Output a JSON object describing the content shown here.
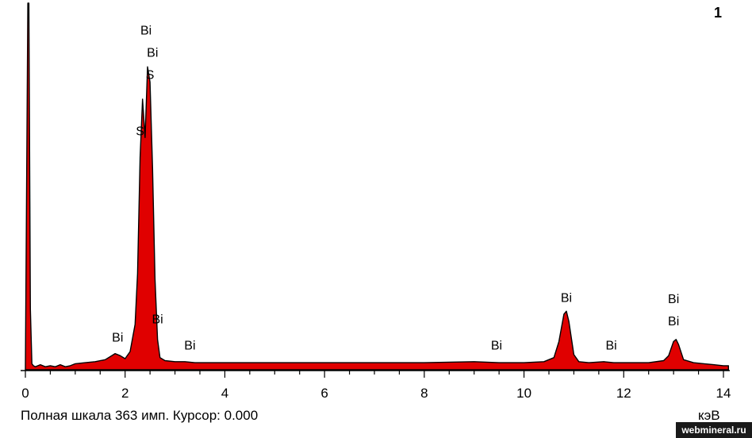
{
  "chart_data": {
    "type": "area",
    "x_unit": "кэВ",
    "xlim": [
      0,
      14
    ],
    "ylim": [
      0,
      363
    ],
    "x_ticks": [
      "0",
      "2",
      "4",
      "6",
      "8",
      "10",
      "12",
      "14"
    ],
    "grid": false,
    "fill_color": "#e00000",
    "outline_color": "#000000",
    "spectrum": {
      "x": [
        0.0,
        0.05,
        0.07,
        0.1,
        0.13,
        0.16,
        0.2,
        0.3,
        0.4,
        0.5,
        0.6,
        0.7,
        0.8,
        0.9,
        1.0,
        1.2,
        1.4,
        1.6,
        1.7,
        1.8,
        1.9,
        2.0,
        2.1,
        2.2,
        2.25,
        2.3,
        2.35,
        2.4,
        2.45,
        2.5,
        2.55,
        2.6,
        2.65,
        2.7,
        2.8,
        3.0,
        3.2,
        3.4,
        3.6,
        4.0,
        5.0,
        6.0,
        7.0,
        8.0,
        9.0,
        9.5,
        10.0,
        10.4,
        10.6,
        10.7,
        10.8,
        10.85,
        10.9,
        11.0,
        11.1,
        11.3,
        11.6,
        11.8,
        12.0,
        12.5,
        12.8,
        12.9,
        13.0,
        13.05,
        13.1,
        13.2,
        13.4,
        13.8,
        14.0,
        14.1
      ],
      "y": [
        0,
        363,
        363,
        60,
        6,
        4,
        3,
        5,
        3,
        4,
        3,
        5,
        3,
        4,
        6,
        7,
        8,
        10,
        13,
        16,
        14,
        11,
        18,
        45,
        95,
        210,
        268,
        230,
        300,
        285,
        200,
        90,
        30,
        12,
        9,
        8,
        8,
        7,
        7,
        7,
        7,
        7,
        7,
        7,
        8,
        7,
        7,
        8,
        12,
        28,
        55,
        58,
        48,
        15,
        8,
        7,
        8,
        7,
        7,
        7,
        9,
        14,
        28,
        30,
        25,
        10,
        7,
        5,
        4,
        4
      ]
    },
    "peak_labels": [
      {
        "text": "Bi",
        "x": 2.42,
        "y": 332
      },
      {
        "text": "Bi",
        "x": 2.55,
        "y": 310
      },
      {
        "text": "S",
        "x": 2.5,
        "y": 288
      },
      {
        "text": "S",
        "x": 2.3,
        "y": 232
      },
      {
        "text": "Bi",
        "x": 1.85,
        "y": 28
      },
      {
        "text": "Bi",
        "x": 2.65,
        "y": 46
      },
      {
        "text": "Bi",
        "x": 3.3,
        "y": 20
      },
      {
        "text": "Bi",
        "x": 9.45,
        "y": 20
      },
      {
        "text": "Bi",
        "x": 10.85,
        "y": 67
      },
      {
        "text": "Bi",
        "x": 11.75,
        "y": 20
      },
      {
        "text": "Bi",
        "x": 13.0,
        "y": 66
      },
      {
        "text": "Bi",
        "x": 13.0,
        "y": 44
      }
    ]
  },
  "status_bar": {
    "full_scale_text": "Полная шкала 363 имп. Курсор: 0.000",
    "unit_label": "кэВ"
  },
  "corner_label": "1",
  "watermark": "webmineral.ru"
}
